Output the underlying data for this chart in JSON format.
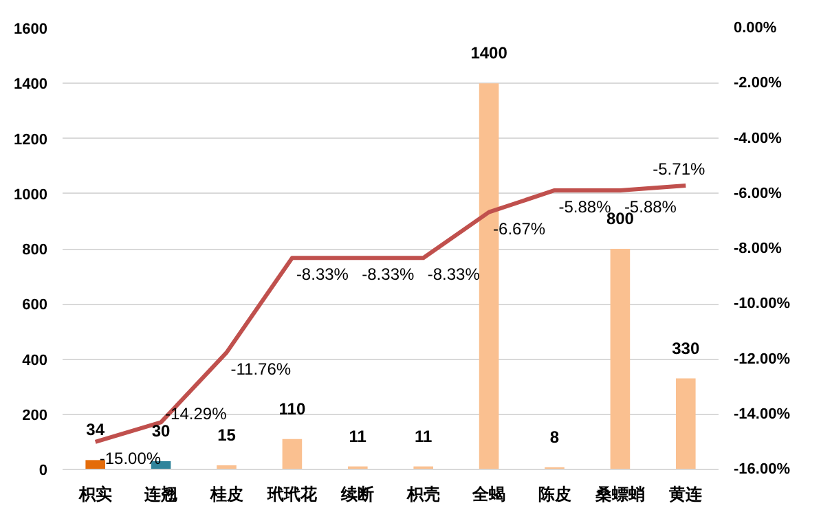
{
  "chart_data": {
    "type": "bar",
    "categories": [
      "枳实",
      "连翘",
      "桂皮",
      "玳玳花",
      "续断",
      "枳壳",
      "全蝎",
      "陈皮",
      "桑螵蛸",
      "黄连"
    ],
    "ylim": [
      0,
      1600
    ],
    "yticks": [
      0,
      200,
      400,
      600,
      800,
      1000,
      1200,
      1400,
      1600
    ],
    "y2lim": [
      -16,
      0
    ],
    "y2ticks": [
      {
        "value": -16,
        "label": "-16.00%"
      },
      {
        "value": -14,
        "label": "-14.00%"
      },
      {
        "value": -12,
        "label": "-12.00%"
      },
      {
        "value": -10,
        "label": "-10.00%"
      },
      {
        "value": -8,
        "label": "-8.00%"
      },
      {
        "value": -6,
        "label": "-6.00%"
      },
      {
        "value": -4,
        "label": "-4.00%"
      },
      {
        "value": -2,
        "label": "-2.00%"
      },
      {
        "value": 0,
        "label": "0.00%"
      }
    ],
    "grid": "y",
    "series": [
      {
        "colors": [
          "#e46c0a",
          "#31849b",
          "#fac090",
          "#fac090",
          "#fac090",
          "#fac090",
          "#fac090",
          "#fac090",
          "#fac090",
          "#fac090"
        ],
        "values": [
          34,
          30,
          15,
          110,
          11,
          11,
          1400,
          8,
          800,
          330
        ],
        "data_labels": true
      },
      {
        "type": "line",
        "axis": "y2",
        "color": "#c0504d",
        "values": [
          -15.0,
          -14.29,
          -11.76,
          -8.33,
          -8.33,
          -8.33,
          -6.67,
          -5.88,
          -5.88,
          -5.71
        ],
        "value_labels": [
          "-15.00%",
          "-14.29%",
          "-11.76%",
          "-8.33%",
          "-8.33%",
          "-8.33%",
          "-6.67%",
          "-5.88%",
          "-5.88%",
          "-5.71%"
        ]
      }
    ]
  }
}
